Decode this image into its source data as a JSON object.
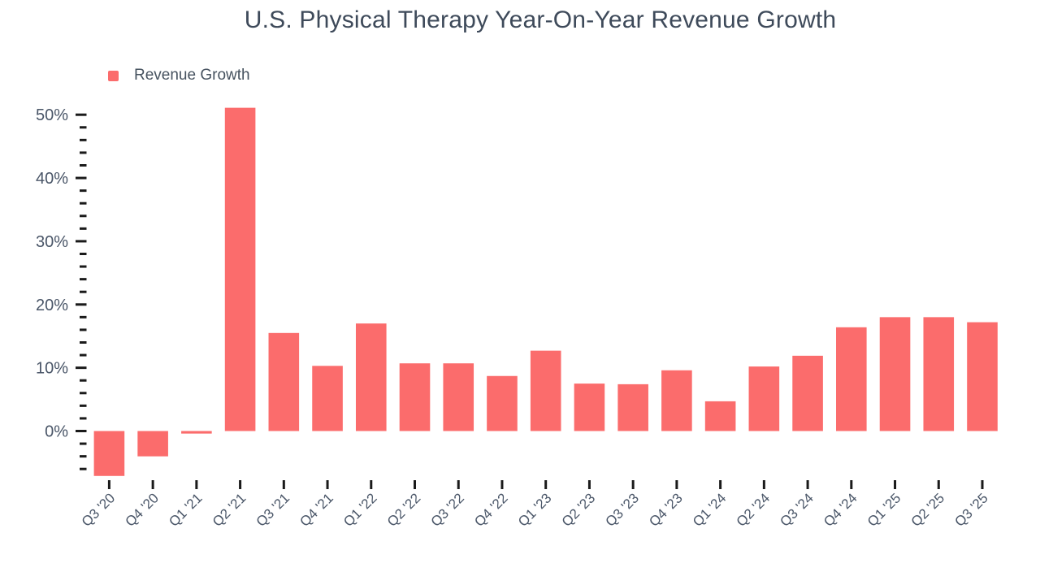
{
  "header": {
    "title": "U.S. Physical Therapy Year-On-Year Revenue Growth"
  },
  "legend": {
    "items": [
      {
        "label": "Revenue Growth",
        "swatch_color": "#fb6c6c"
      }
    ],
    "position": "top-left"
  },
  "colors": {
    "bar": "#fb6c6c",
    "title_text": "#3e4a5a",
    "axis_label_text": "#4a5668",
    "tick_mark": "#1a1a1a",
    "background": "#ffffff"
  },
  "chart_data": {
    "type": "bar",
    "title": "U.S. Physical Therapy Year-On-Year Revenue Growth",
    "xlabel": "",
    "ylabel": "",
    "categories": [
      "Q3 '20",
      "Q4 '20",
      "Q1 '21",
      "Q2 '21",
      "Q3 '21",
      "Q4 '21",
      "Q1 '22",
      "Q2 '22",
      "Q3 '22",
      "Q4 '22",
      "Q1 '23",
      "Q2 '23",
      "Q3 '23",
      "Q4 '23",
      "Q1 '24",
      "Q2 '24",
      "Q3 '24",
      "Q4 '24",
      "Q1 '25",
      "Q2 '25",
      "Q3 '25"
    ],
    "series": [
      {
        "name": "Revenue Growth",
        "color": "#fb6c6c",
        "values": [
          -7.1,
          -4.0,
          -0.4,
          51.1,
          15.5,
          10.3,
          17.0,
          10.7,
          10.7,
          8.7,
          12.7,
          7.5,
          7.4,
          9.6,
          4.7,
          10.2,
          11.9,
          16.4,
          18.0,
          18.0,
          17.2
        ]
      }
    ],
    "value_unit": "%",
    "ylim": [
      -8,
      52
    ],
    "y_major_ticks": [
      0,
      10,
      20,
      30,
      40,
      50
    ],
    "y_major_tick_labels": [
      "0%",
      "10%",
      "20%",
      "30%",
      "40%",
      "50%"
    ],
    "y_minor_tick_step": 2,
    "y_minor_tick_min": -6,
    "y_minor_tick_max": 50,
    "grid": false,
    "legend_position": "top-left",
    "x_tick_label_rotation_deg": -45
  }
}
